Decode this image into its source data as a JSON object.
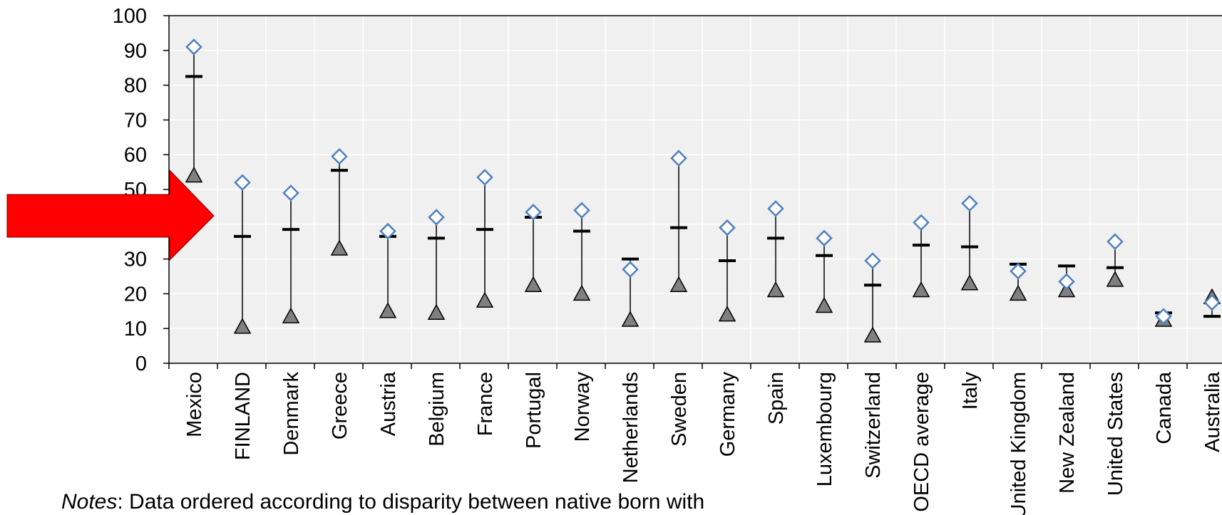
{
  "chart_data": {
    "type": "scatter",
    "title": "",
    "xlabel": "",
    "ylabel": "",
    "ylim": [
      0,
      100
    ],
    "yticks": [
      "0",
      "10",
      "20",
      "30",
      "40",
      "50",
      "60",
      "70",
      "80",
      "90",
      "100"
    ],
    "grid": true,
    "categories": [
      "Mexico",
      "FINLAND",
      "Denmark",
      "Greece",
      "Austria",
      "Belgium",
      "France",
      "Portugal",
      "Norway",
      "Netherlands",
      "Sweden",
      "Germany",
      "Spain",
      "Luxembourg",
      "Switzerland",
      "OECD average",
      "Italy",
      "United Kingdom",
      "New Zealand",
      "United States",
      "Canada",
      "Australia"
    ],
    "series": [
      {
        "marker": "diamond-open",
        "color": "#4f81bd",
        "values": [
          91,
          52,
          49,
          59.5,
          38,
          42,
          53.5,
          43.5,
          44,
          27,
          59,
          39,
          44.5,
          36,
          29.5,
          40.5,
          46,
          26.5,
          23.5,
          35,
          13.5,
          17.5
        ]
      },
      {
        "marker": "dash",
        "color": "#000000",
        "values": [
          82.5,
          36.5,
          38.5,
          55.5,
          36.5,
          36,
          38.5,
          42,
          38,
          30,
          39,
          29.5,
          36,
          31,
          22.5,
          34,
          33.5,
          28.5,
          28,
          27.5,
          14.5,
          13.5
        ]
      },
      {
        "marker": "triangle-filled",
        "color": "#808080",
        "values": [
          54,
          10.5,
          13.5,
          33,
          15,
          14.5,
          18,
          22.5,
          20,
          12.5,
          22.5,
          14,
          21,
          16.5,
          8,
          21,
          23,
          20,
          21,
          24,
          12.5,
          19
        ]
      }
    ]
  },
  "annotation": {
    "arrow_color": "#ff0000"
  },
  "notes": {
    "label": "Notes",
    "text": ": Data ordered according to disparity between native born with"
  }
}
